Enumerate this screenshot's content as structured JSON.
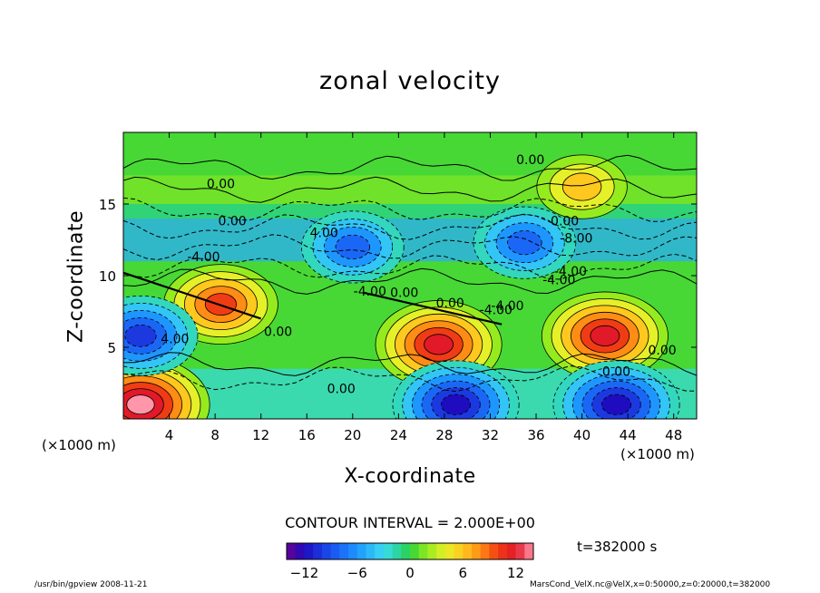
{
  "chart_data": {
    "type": "heatmap",
    "title": "zonal velocity",
    "xlabel": "X-coordinate",
    "ylabel": "Z-coordinate",
    "x_unit_label": "(×1000 m)",
    "x_ticks": [
      4,
      8,
      12,
      16,
      20,
      24,
      28,
      32,
      36,
      40,
      44,
      48
    ],
    "y_ticks": [
      5,
      10,
      15
    ],
    "xlim": [
      0,
      50
    ],
    "ylim": [
      0,
      20
    ],
    "contour_interval_text": "CONTOUR INTERVAL = 2.000E+00",
    "contour_labels": [
      "0.00",
      "0.00",
      "0.00",
      "-4.00",
      "4.00",
      "0.00",
      "-8.00",
      "-4.00",
      "-4.00",
      "-4.00",
      "0.00",
      "0.00",
      "-4.00",
      "-4.00",
      "0.00",
      "4.00",
      "0.00",
      "0.00",
      "0.00"
    ],
    "colorbar": {
      "range": [
        -14,
        14
      ],
      "ticks": [
        -12,
        -6,
        0,
        6,
        12
      ]
    },
    "features": [
      {
        "x": 8.5,
        "z": 8.0,
        "value": 10
      },
      {
        "x": 27.5,
        "z": 5.2,
        "value": 12
      },
      {
        "x": 42,
        "z": 5.8,
        "value": 12
      },
      {
        "x": 1.5,
        "z": 1.0,
        "value": 14
      },
      {
        "x": 1.5,
        "z": 5.8,
        "value": -10
      },
      {
        "x": 29,
        "z": 1.0,
        "value": -12
      },
      {
        "x": 43,
        "z": 1.0,
        "value": -12
      },
      {
        "x": 40,
        "z": 16.2,
        "value": 6
      },
      {
        "x": 20,
        "z": 12.0,
        "value": -8
      },
      {
        "x": 35,
        "z": 12.3,
        "value": -8
      }
    ]
  },
  "annotations": {
    "time": "t=382000 s",
    "footer_left": "/usr/bin/gpview  2008-11-21",
    "footer_right": "MarsCond_VelX.nc@VelX,x=0:50000,z=0:20000,t=382000"
  }
}
